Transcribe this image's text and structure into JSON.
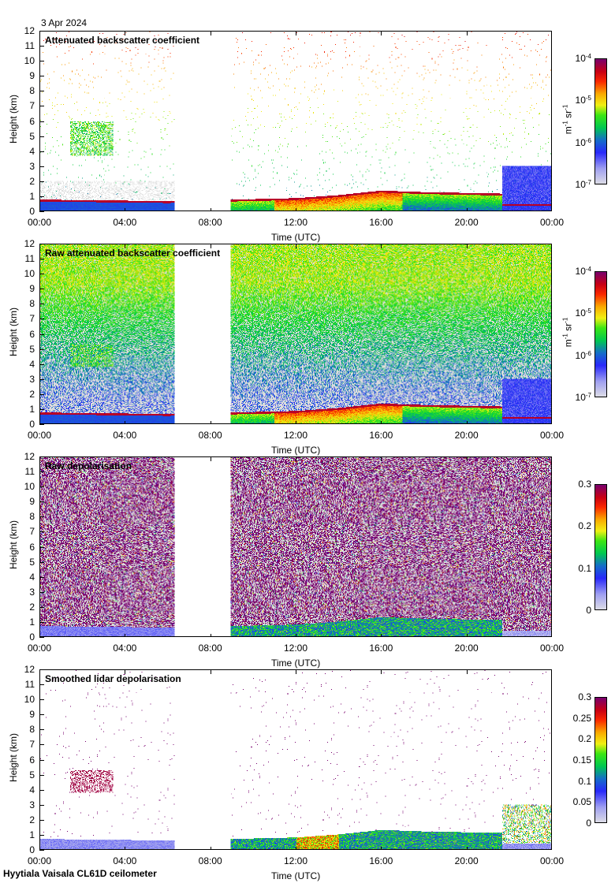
{
  "header": {
    "date": "3 Apr 2024"
  },
  "footer": {
    "site": "Hyytiala Vaisala CL61D ceilometer"
  },
  "chart_data": [
    {
      "type": "heatmap",
      "title": "Attenuated backscatter coefficient",
      "xlabel": "Time (UTC)",
      "ylabel": "Height (km)",
      "x_ticks": [
        "00:00",
        "04:00",
        "08:00",
        "12:00",
        "16:00",
        "20:00",
        "00:00"
      ],
      "y_ticks": [
        "0",
        "1",
        "2",
        "3",
        "4",
        "5",
        "6",
        "7",
        "8",
        "9",
        "10",
        "11",
        "12"
      ],
      "xlim_hours": [
        0,
        24
      ],
      "ylim_km": [
        0,
        12
      ],
      "colorbar": {
        "scale": "log",
        "ticks": [
          "10^-7",
          "10^-6",
          "10^-5",
          "10^-4"
        ],
        "unit": "m-1 sr-1",
        "range": [
          1e-07,
          0.0001
        ]
      },
      "data_gap_hours": [
        6.3,
        8.9
      ],
      "features": {
        "boundary_layer_top_km": [
          [
            0,
            0.7
          ],
          [
            6,
            0.6
          ],
          [
            9,
            0.7
          ],
          [
            12,
            0.8
          ],
          [
            14,
            1.0
          ],
          [
            16,
            1.3
          ],
          [
            18,
            1.2
          ],
          [
            21.7,
            1.1
          ]
        ],
        "cloud_layer": {
          "start_h": 1.4,
          "end_h": 3.4,
          "base_km": 3.7,
          "top_km": 6.0
        },
        "night_end_layer": {
          "start_h": 21.7,
          "end_h": 24,
          "top_km": 3.0
        }
      }
    },
    {
      "type": "heatmap",
      "title": "Raw attenuated backscatter coefficient",
      "xlabel": "Time (UTC)",
      "ylabel": "Height (km)",
      "x_ticks": [
        "00:00",
        "04:00",
        "08:00",
        "12:00",
        "16:00",
        "20:00",
        "00:00"
      ],
      "y_ticks": [
        "0",
        "1",
        "2",
        "3",
        "4",
        "5",
        "6",
        "7",
        "8",
        "9",
        "10",
        "11",
        "12"
      ],
      "xlim_hours": [
        0,
        24
      ],
      "ylim_km": [
        0,
        12
      ],
      "colorbar": {
        "scale": "log",
        "ticks": [
          "10^-7",
          "10^-6",
          "10^-5",
          "10^-4"
        ],
        "unit": "m-1 sr-1",
        "range": [
          1e-07,
          0.0001
        ]
      },
      "data_gap_hours": [
        6.3,
        8.9
      ]
    },
    {
      "type": "heatmap",
      "title": "Raw depolarisation",
      "xlabel": "Time (UTC)",
      "ylabel": "Height (km)",
      "x_ticks": [
        "00:00",
        "04:00",
        "08:00",
        "12:00",
        "16:00",
        "20:00",
        "00:00"
      ],
      "y_ticks": [
        "0",
        "1",
        "2",
        "3",
        "4",
        "5",
        "6",
        "7",
        "8",
        "9",
        "10",
        "11",
        "12"
      ],
      "xlim_hours": [
        0,
        24
      ],
      "ylim_km": [
        0,
        12
      ],
      "colorbar": {
        "scale": "linear",
        "ticks": [
          "0",
          "0.1",
          "0.2",
          "0.3"
        ],
        "range": [
          0,
          0.3
        ]
      },
      "data_gap_hours": [
        6.3,
        8.9
      ]
    },
    {
      "type": "heatmap",
      "title": "Smoothed lidar depolarisation",
      "xlabel": "Time (UTC)",
      "ylabel": "Height (km)",
      "x_ticks": [
        "00:00",
        "04:00",
        "08:00",
        "12:00",
        "16:00",
        "20:00",
        "00:00"
      ],
      "y_ticks": [
        "0",
        "1",
        "2",
        "3",
        "4",
        "5",
        "6",
        "7",
        "8",
        "9",
        "10",
        "11",
        "12"
      ],
      "xlim_hours": [
        0,
        24
      ],
      "ylim_km": [
        0,
        12
      ],
      "colorbar": {
        "scale": "linear",
        "ticks": [
          "0",
          "0.05",
          "0.1",
          "0.15",
          "0.2",
          "0.25",
          "0.3"
        ],
        "range": [
          0,
          0.3
        ]
      },
      "data_gap_hours": [
        6.3,
        8.9
      ]
    }
  ]
}
